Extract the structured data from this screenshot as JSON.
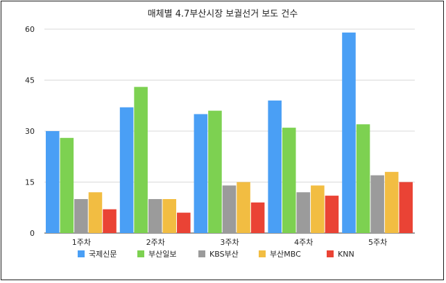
{
  "chart_data": {
    "type": "bar",
    "title": "매체별 4.7부산시장 보궐선거 보도 건수",
    "categories": [
      "1주차",
      "2주차",
      "3주차",
      "4주차",
      "5주차"
    ],
    "series": [
      {
        "name": "국제신문",
        "color": "#4a9ff5",
        "values": [
          30,
          37,
          35,
          39,
          59
        ]
      },
      {
        "name": "부산일보",
        "color": "#7dd151",
        "values": [
          28,
          43,
          36,
          31,
          32
        ]
      },
      {
        "name": "KBS부산",
        "color": "#9b9b9b",
        "values": [
          10,
          10,
          14,
          12,
          17
        ]
      },
      {
        "name": "부산MBC",
        "color": "#f2bd42",
        "values": [
          12,
          10,
          15,
          14,
          18
        ]
      },
      {
        "name": "KNN",
        "color": "#ea4335",
        "values": [
          7,
          6,
          9,
          11,
          15
        ]
      }
    ],
    "yticks": [
      "0",
      "15",
      "30",
      "45",
      "60"
    ],
    "ylim": [
      0,
      60
    ],
    "grid": true,
    "legend": "bottom"
  }
}
